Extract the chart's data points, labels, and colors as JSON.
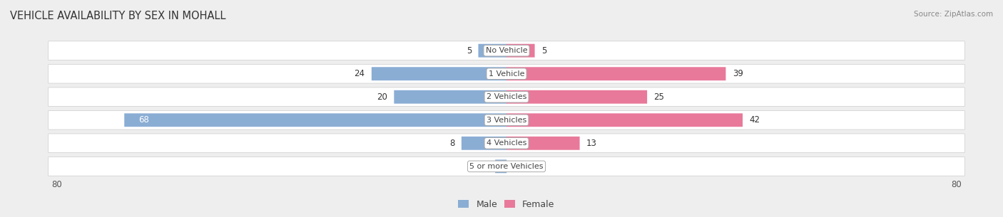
{
  "title": "VEHICLE AVAILABILITY BY SEX IN MOHALL",
  "source": "Source: ZipAtlas.com",
  "categories": [
    "No Vehicle",
    "1 Vehicle",
    "2 Vehicles",
    "3 Vehicles",
    "4 Vehicles",
    "5 or more Vehicles"
  ],
  "male_values": [
    5,
    24,
    20,
    68,
    8,
    2
  ],
  "female_values": [
    5,
    39,
    25,
    42,
    13,
    0
  ],
  "male_color": "#8aadd4",
  "female_color": "#e8799a",
  "male_label": "Male",
  "female_label": "Female",
  "xlim": 80,
  "background_color": "#eeeeee",
  "title_fontsize": 10.5,
  "label_fontsize": 8.5,
  "axis_label_fontsize": 8.5,
  "legend_fontsize": 9
}
